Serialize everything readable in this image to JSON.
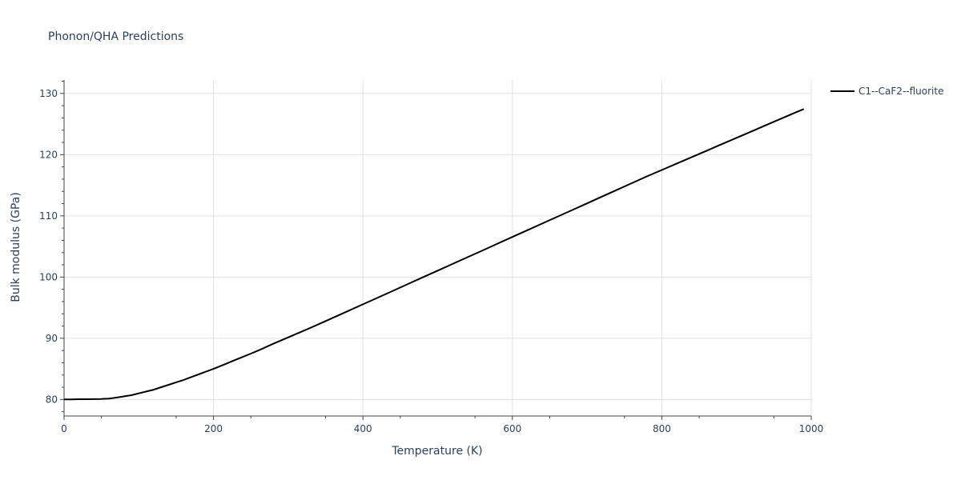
{
  "chart_data": {
    "type": "line",
    "title": "Phonon/QHA Predictions",
    "xlabel": "Temperature (K)",
    "ylabel": "Bulk modulus (GPa)",
    "xlim": [
      0,
      1000
    ],
    "ylim": [
      77.3,
      132.2
    ],
    "x_ticks": [
      0,
      200,
      400,
      600,
      800,
      1000
    ],
    "x_tick_labels": [
      "0",
      "200",
      "400",
      "600",
      "800",
      "1000"
    ],
    "y_ticks": [
      80,
      90,
      100,
      110,
      120,
      130
    ],
    "y_tick_labels": [
      "80",
      "90",
      "100",
      "110",
      "120",
      "130"
    ],
    "grid": true,
    "legend_position": "top-right",
    "series": [
      {
        "name": "C1--CaF2--fluorite",
        "color": "#000000",
        "x": [
          0,
          10,
          20,
          30,
          40,
          50,
          60,
          70,
          80,
          90,
          100,
          110,
          120,
          130,
          140,
          150,
          160,
          170,
          180,
          190,
          200,
          210,
          220,
          230,
          240,
          250,
          260,
          280,
          300,
          320,
          340,
          360,
          380,
          400,
          420,
          440,
          460,
          480,
          500,
          520,
          540,
          560,
          580,
          600,
          620,
          640,
          660,
          680,
          700,
          720,
          740,
          760,
          780,
          800,
          820,
          840,
          860,
          880,
          900,
          920,
          940,
          960,
          980,
          990
        ],
        "y": [
          80.0,
          80.02,
          80.04,
          80.05,
          80.06,
          80.08,
          80.15,
          80.3,
          80.5,
          80.7,
          81.0,
          81.3,
          81.6,
          82.0,
          82.4,
          82.8,
          83.2,
          83.65,
          84.1,
          84.55,
          85.0,
          85.5,
          86.0,
          86.5,
          87.0,
          87.5,
          88.0,
          89.1,
          90.15,
          91.2,
          92.25,
          93.35,
          94.45,
          95.55,
          96.65,
          97.75,
          98.85,
          99.95,
          101.05,
          102.15,
          103.25,
          104.35,
          105.45,
          106.55,
          107.65,
          108.75,
          109.85,
          110.95,
          112.05,
          113.15,
          114.25,
          115.35,
          116.45,
          117.5,
          118.55,
          119.6,
          120.65,
          121.7,
          122.75,
          123.8,
          124.85,
          125.9,
          126.95,
          127.45
        ]
      }
    ]
  }
}
